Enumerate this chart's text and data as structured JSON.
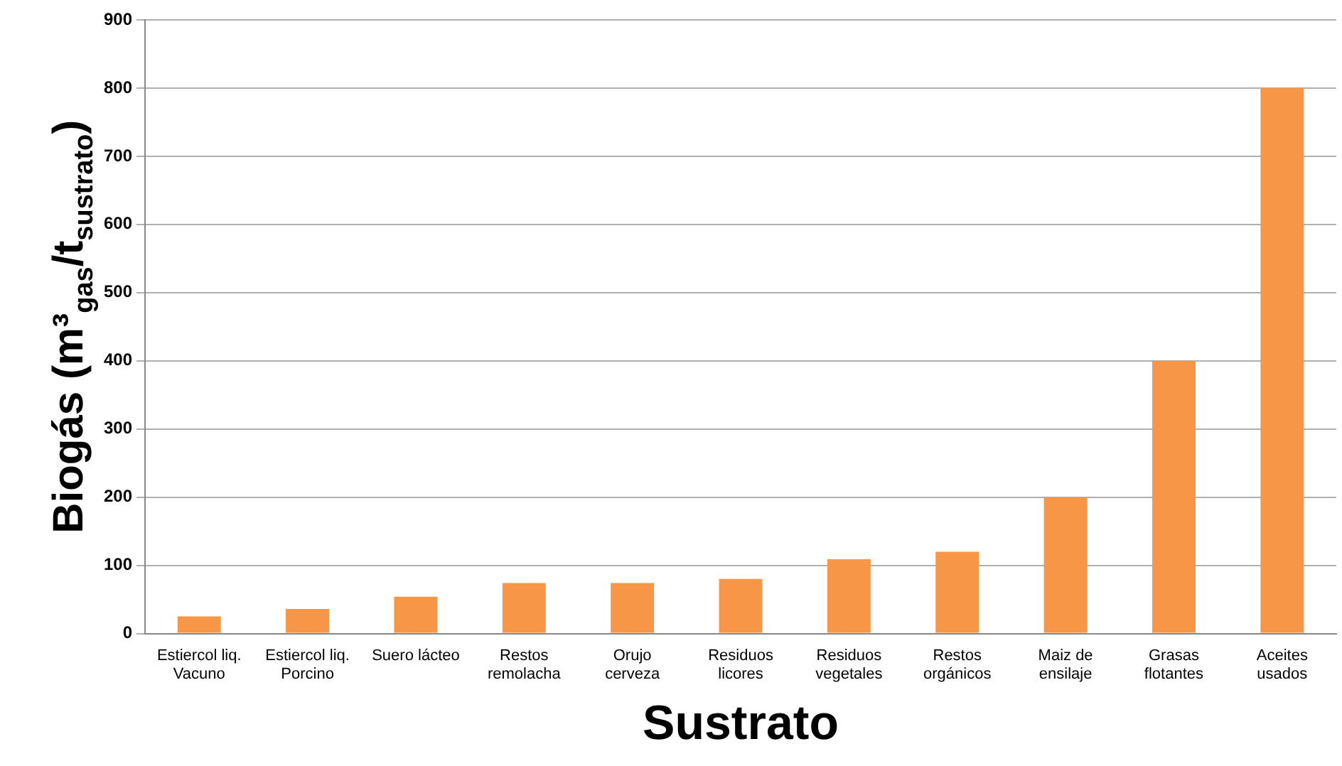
{
  "chart_data": {
    "type": "bar",
    "xlabel": "Sustrato",
    "ylabel": "Biogás (m³$_{gas}$/t$_{sustrato}$)",
    "categories": [
      "Estiercol liq.\nVacuno",
      "Estiercol liq.\nPorcino",
      "Suero lácteo",
      "Restos\nremolacha",
      "Orujo\ncerveza",
      "Residuos\nlicores",
      "Residuos\nvegetales",
      "Restos\norgánicos",
      "Maiz de\nensilaje",
      "Grasas\nflotantes",
      "Aceites\nusados"
    ],
    "values": [
      25,
      36,
      54,
      74,
      74,
      80,
      109,
      120,
      200,
      400,
      800
    ],
    "color": "#f79646",
    "ylim": [
      0,
      900
    ],
    "yticks": [
      0,
      100,
      200,
      300,
      400,
      500,
      600,
      700,
      800,
      900
    ],
    "grid": "y",
    "legend": false
  }
}
